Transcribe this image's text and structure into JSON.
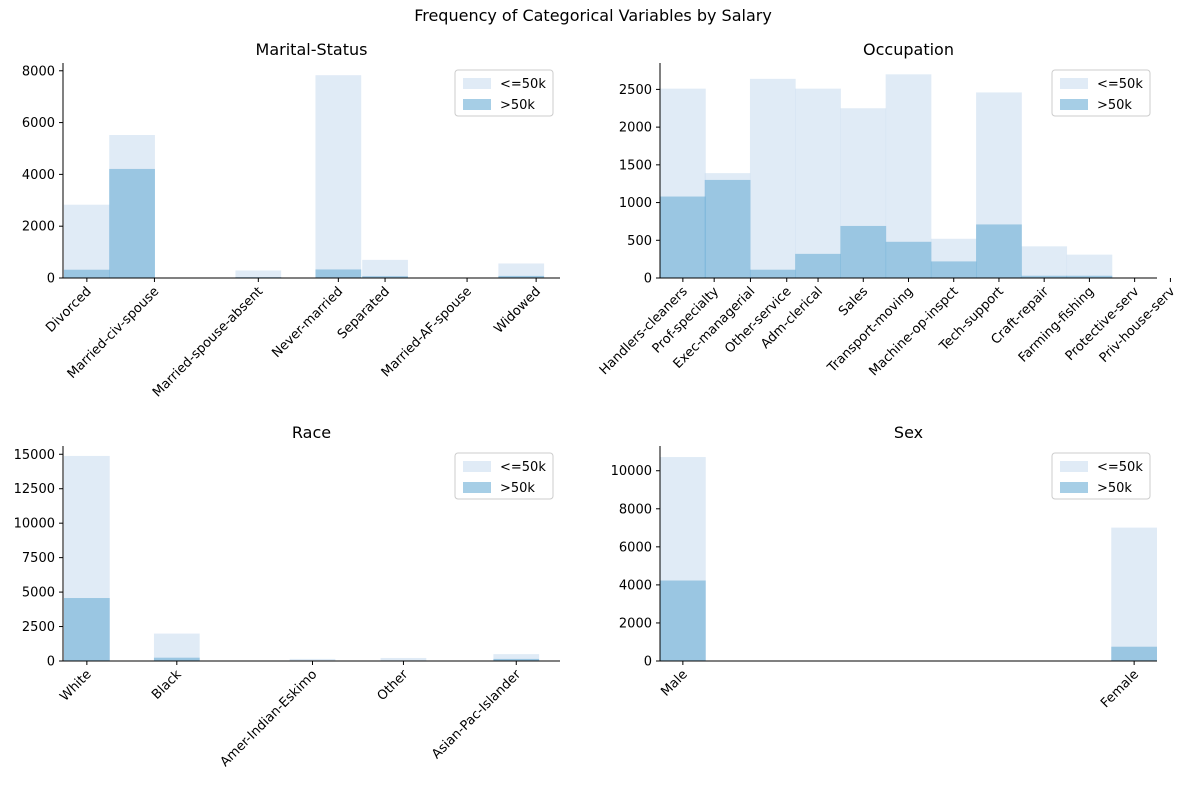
{
  "title": "Frequency of Categorical Variables by Salary",
  "colors": {
    "low": "#c6dbef",
    "high": "#6baed6",
    "alpha": 0.5,
    "axis": "#000000"
  },
  "legend_labels": [
    "<=50k",
    ">50k"
  ],
  "chart_data": [
    {
      "type": "bar",
      "title": "Marital-Status",
      "categories": [
        "Divorced",
        "Married-civ-spouse",
        "Married-spouse-absent",
        "Never-married",
        "Separated",
        "Married-AF-spouse",
        "Widowed"
      ],
      "series": [
        {
          "name": "<=50k",
          "values": [
            2830,
            5520,
            290,
            7830,
            700,
            10,
            560
          ]
        },
        {
          "name": ">50k",
          "values": [
            320,
            4210,
            30,
            330,
            70,
            10,
            80
          ]
        }
      ],
      "ylim": [
        0,
        8300
      ],
      "yticks": [
        0,
        2000,
        4000,
        6000,
        8000
      ],
      "legend": "top-right"
    },
    {
      "type": "bar",
      "title": "Occupation",
      "categories": [
        "Handlers-cleaners",
        "Prof-specialty",
        "Exec-managerial",
        "Other-service",
        "Adm-clerical",
        "Sales",
        "Transport-moving",
        "Machine-op-inspct",
        "Tech-support",
        "Craft-repair",
        "Farming-fishing",
        "Protective-serv",
        "Priv-house-serv"
      ],
      "series": [
        {
          "name": "<=50k",
          "values": [
            2510,
            1390,
            2640,
            2510,
            2250,
            2700,
            520,
            2460,
            420,
            310,
            0,
            0,
            0
          ]
        },
        {
          "name": ">50k",
          "values": [
            1080,
            1300,
            110,
            320,
            690,
            480,
            220,
            710,
            30,
            30,
            0,
            0,
            0
          ]
        }
      ],
      "ylim": [
        0,
        2850
      ],
      "yticks": [
        0,
        500,
        1000,
        1500,
        2000,
        2500
      ],
      "legend": "top-right"
    },
    {
      "type": "bar",
      "title": "Race",
      "categories": [
        "White",
        "Black",
        "Amer-Indian-Eskimo",
        "Other",
        "Asian-Pac-Islander"
      ],
      "series": [
        {
          "name": "<=50k",
          "values": [
            14880,
            1990,
            150,
            220,
            500
          ]
        },
        {
          "name": ">50k",
          "values": [
            4570,
            240,
            30,
            25,
            150
          ]
        }
      ],
      "ylim": [
        0,
        15600
      ],
      "yticks": [
        0,
        2500,
        5000,
        7500,
        10000,
        12500,
        15000
      ],
      "legend": "top-right"
    },
    {
      "type": "bar",
      "title": "Sex",
      "categories": [
        "Male",
        "Female"
      ],
      "series": [
        {
          "name": "<=50k",
          "values": [
            10720,
            7010
          ]
        },
        {
          "name": ">50k",
          "values": [
            4230,
            750
          ]
        }
      ],
      "ylim": [
        0,
        11300
      ],
      "yticks": [
        0,
        2000,
        4000,
        6000,
        8000,
        10000
      ],
      "legend": "top-right"
    }
  ]
}
